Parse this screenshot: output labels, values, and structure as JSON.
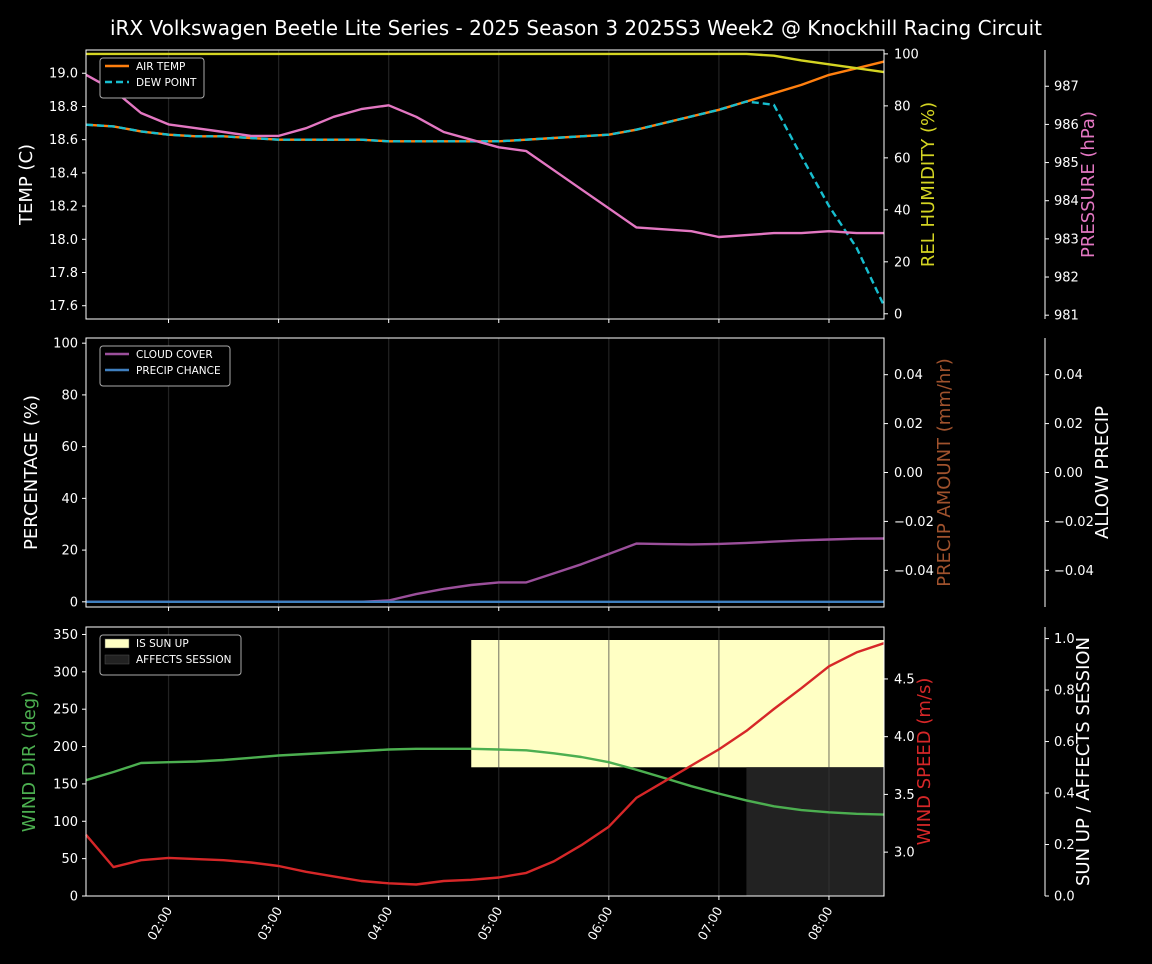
{
  "title": "iRX Volkswagen Beetle Lite Series - 2025 Season 3 2025S3 Week2 @ Knockhill Racing Circuit",
  "colors": {
    "background": "#000000",
    "text": "#ffffff",
    "air_temp": "#ff7f0e",
    "dew_point": "#17becf",
    "humidity": "#d4d422",
    "pressure": "#e377c2",
    "cloud": "#9b4f9b",
    "precip_chance": "#3f7fbf",
    "precip_amount_label": "#a0522d",
    "wind_dir": "#4caf50",
    "wind_speed": "#d62728",
    "sun_up": "#ffffc4",
    "affects_session": "#222222"
  },
  "x_ticks": [
    "02:00",
    "03:00",
    "04:00",
    "05:00",
    "06:00",
    "07:00",
    "08:00"
  ],
  "chart_data": [
    {
      "type": "line",
      "panel": "temperature",
      "x_range": [
        "01:15",
        "08:30"
      ],
      "grid": "vertical",
      "legend_position": "top-left",
      "ylabel": "TEMP (C)",
      "ylabel_right": "REL HUMIDITY (%)",
      "ylabel_far_right": "PRESSURE (hPa)",
      "ylim": [
        17.52,
        19.14
      ],
      "ylim_right": [
        -2,
        101.5
      ],
      "ylim_far_right": [
        980.9,
        987.95
      ],
      "yticks": [
        "17.6",
        "17.8",
        "18.0",
        "18.2",
        "18.4",
        "18.6",
        "18.8",
        "19.0"
      ],
      "yticks_right": [
        "0",
        "20",
        "40",
        "60",
        "80",
        "100"
      ],
      "yticks_far_right": [
        "981",
        "982",
        "983",
        "984",
        "985",
        "986",
        "987"
      ],
      "x": [
        "01:15",
        "01:30",
        "01:45",
        "02:00",
        "02:15",
        "02:30",
        "02:45",
        "03:00",
        "03:15",
        "03:30",
        "03:45",
        "04:00",
        "04:15",
        "04:30",
        "04:45",
        "05:00",
        "05:15",
        "05:30",
        "05:45",
        "06:00",
        "06:15",
        "06:30",
        "06:45",
        "07:00",
        "07:15",
        "07:30",
        "07:45",
        "08:00",
        "08:15",
        "08:30"
      ],
      "series": [
        {
          "name": "AIR TEMP",
          "axis": "left",
          "style": "solid",
          "values": [
            18.69,
            18.68,
            18.65,
            18.63,
            18.62,
            18.62,
            18.61,
            18.6,
            18.6,
            18.6,
            18.6,
            18.59,
            18.59,
            18.59,
            18.59,
            18.59,
            18.6,
            18.61,
            18.62,
            18.63,
            18.66,
            18.7,
            18.74,
            18.78,
            18.83,
            18.88,
            18.93,
            18.99,
            19.03,
            19.07
          ]
        },
        {
          "name": "DEW POINT",
          "axis": "left",
          "style": "dashed",
          "values": [
            18.69,
            18.68,
            18.65,
            18.63,
            18.62,
            18.62,
            18.61,
            18.6,
            18.6,
            18.6,
            18.6,
            18.59,
            18.59,
            18.59,
            18.59,
            18.59,
            18.6,
            18.61,
            18.62,
            18.63,
            18.66,
            18.7,
            18.74,
            18.78,
            18.83,
            18.81,
            18.5,
            18.2,
            17.95,
            17.6
          ]
        },
        {
          "name": "REL HUMIDITY",
          "axis": "right",
          "style": "solid",
          "values": [
            100,
            100,
            100,
            100,
            100,
            100,
            100,
            100,
            100,
            100,
            100,
            100,
            100,
            100,
            100,
            100,
            100,
            100,
            100,
            100,
            100,
            100,
            100,
            100,
            100,
            99.3,
            97.5,
            96,
            94.5,
            93
          ]
        },
        {
          "name": "PRESSURE",
          "axis": "far_right",
          "style": "solid",
          "values": [
            987.3,
            986.9,
            986.3,
            986.0,
            985.9,
            985.8,
            985.7,
            985.7,
            985.9,
            986.2,
            986.4,
            986.5,
            986.2,
            985.8,
            985.6,
            985.4,
            985.3,
            984.8,
            984.3,
            983.8,
            983.3,
            983.25,
            983.2,
            983.05,
            983.1,
            983.15,
            983.15,
            983.2,
            983.15,
            983.15
          ]
        }
      ]
    },
    {
      "type": "line",
      "panel": "clouds_precip",
      "x_range": [
        "01:15",
        "08:30"
      ],
      "grid": "vertical",
      "legend_position": "top-left",
      "ylabel": "PERCENTAGE (%)",
      "ylabel_right": "PRECIP AMOUNT (mm/hr)",
      "ylabel_far_right": "ALLOW PRECIP",
      "ylim": [
        -2,
        102
      ],
      "ylim_right": [
        -0.055,
        0.055
      ],
      "ylim_far_right": [
        -0.055,
        0.055
      ],
      "yticks": [
        "0",
        "20",
        "40",
        "60",
        "80",
        "100"
      ],
      "yticks_right": [
        "−0.04",
        "−0.02",
        "0.00",
        "0.02",
        "0.04"
      ],
      "yticks_far_right": [
        "−0.04",
        "−0.02",
        "0.00",
        "0.02",
        "0.04"
      ],
      "x": [
        "01:15",
        "01:30",
        "01:45",
        "02:00",
        "02:15",
        "02:30",
        "02:45",
        "03:00",
        "03:15",
        "03:30",
        "03:45",
        "04:00",
        "04:15",
        "04:30",
        "04:45",
        "05:00",
        "05:15",
        "05:30",
        "05:45",
        "06:00",
        "06:15",
        "06:30",
        "06:45",
        "07:00",
        "07:15",
        "07:30",
        "07:45",
        "08:00",
        "08:15",
        "08:30"
      ],
      "series": [
        {
          "name": "CLOUD COVER",
          "axis": "left",
          "values": [
            0,
            0,
            0,
            0,
            0,
            0,
            0,
            0,
            0,
            0,
            0,
            0.5,
            3,
            5,
            6.5,
            7.5,
            7.5,
            11,
            14.5,
            18.5,
            22.5,
            22.3,
            22.2,
            22.4,
            22.8,
            23.3,
            23.8,
            24.1,
            24.4,
            24.5
          ]
        },
        {
          "name": "PRECIP CHANCE",
          "axis": "left",
          "values": [
            0,
            0,
            0,
            0,
            0,
            0,
            0,
            0,
            0,
            0,
            0,
            0,
            0,
            0,
            0,
            0,
            0,
            0,
            0,
            0,
            0,
            0,
            0,
            0,
            0,
            0,
            0,
            0,
            0,
            0
          ]
        }
      ]
    },
    {
      "type": "line",
      "panel": "wind_sun",
      "x_range": [
        "01:15",
        "08:30"
      ],
      "grid": "vertical",
      "legend_position": "top-left",
      "ylabel": "WIND DIR (deg)",
      "ylabel_right": "WIND SPEED (m/s)",
      "ylabel_far_right": "SUN UP / AFFECTS SESSION",
      "ylim": [
        0,
        360
      ],
      "ylim_right": [
        2.62,
        4.95
      ],
      "ylim_far_right": [
        0,
        1.045
      ],
      "yticks": [
        "0",
        "50",
        "100",
        "150",
        "200",
        "250",
        "300",
        "350"
      ],
      "yticks_right": [
        "3.0",
        "3.5",
        "4.0",
        "4.5"
      ],
      "yticks_far_right": [
        "0.0",
        "0.2",
        "0.4",
        "0.6",
        "0.8",
        "1.0"
      ],
      "x": [
        "01:15",
        "01:30",
        "01:45",
        "02:00",
        "02:15",
        "02:30",
        "02:45",
        "03:00",
        "03:15",
        "03:30",
        "03:45",
        "04:00",
        "04:15",
        "04:30",
        "04:45",
        "05:00",
        "05:15",
        "05:30",
        "05:45",
        "06:00",
        "06:15",
        "06:30",
        "06:45",
        "07:00",
        "07:15",
        "07:30",
        "07:45",
        "08:00",
        "08:15",
        "08:30"
      ],
      "series": [
        {
          "name": "WIND DIR",
          "axis": "left",
          "values": [
            155,
            166,
            178,
            179,
            180,
            182,
            185,
            188,
            190,
            192,
            194,
            196,
            197,
            197,
            197,
            196,
            195,
            191,
            186,
            179,
            169,
            158,
            147,
            137,
            128,
            120,
            115,
            112,
            110,
            109
          ]
        },
        {
          "name": "WIND SPEED",
          "axis": "right",
          "values": [
            3.15,
            2.87,
            2.93,
            2.95,
            2.94,
            2.93,
            2.91,
            2.88,
            2.83,
            2.79,
            2.75,
            2.73,
            2.72,
            2.75,
            2.76,
            2.78,
            2.82,
            2.92,
            3.06,
            3.22,
            3.47,
            3.61,
            3.75,
            3.89,
            4.05,
            4.24,
            4.42,
            4.61,
            4.73,
            4.81
          ]
        }
      ],
      "bands": [
        {
          "name": "IS SUN UP",
          "axis": "far_right",
          "from": "04:45",
          "to": "08:30",
          "value": 1
        },
        {
          "name": "AFFECTS SESSION",
          "axis": "far_right",
          "from": "07:15",
          "to": "08:30",
          "value": 0.5
        }
      ]
    }
  ]
}
